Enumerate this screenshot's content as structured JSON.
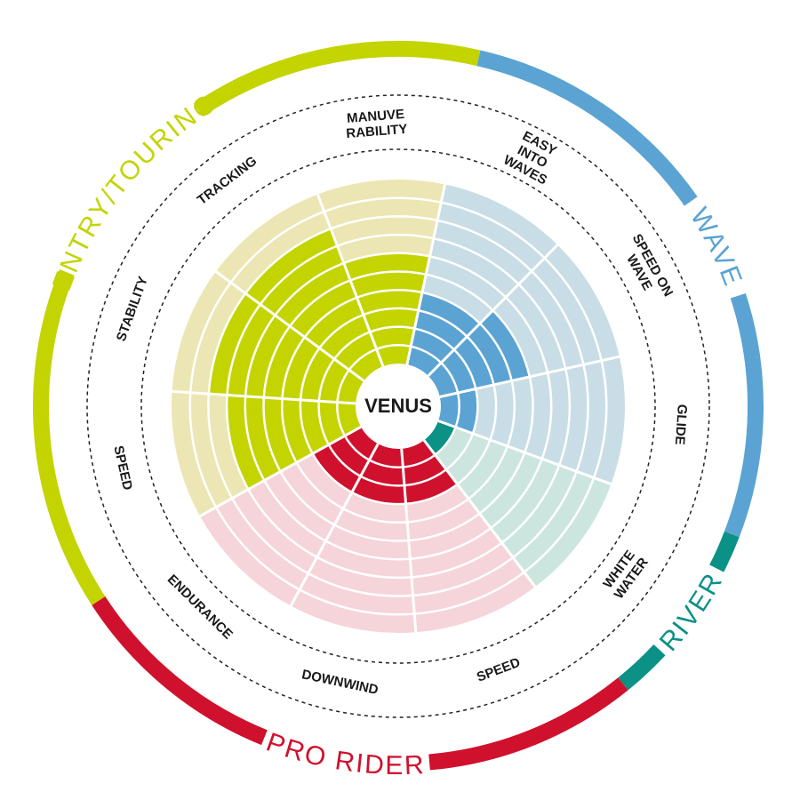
{
  "chart_data": {
    "type": "radial-rating",
    "title": "VENUS",
    "rlim": [
      0,
      10
    ],
    "groups": [
      {
        "name": "ENTRY/TOURING",
        "color": "#c3d400",
        "light_color": "#ece6b4",
        "categories": [
          {
            "label": [
              "SPEED"
            ],
            "value": 7
          },
          {
            "label": [
              "STABILITY"
            ],
            "value": 8
          },
          {
            "label": [
              "TRACKING"
            ],
            "value": 8
          },
          {
            "label": [
              "MANUVE",
              "RABILITY"
            ],
            "value": 6
          }
        ]
      },
      {
        "name": "WAVE",
        "color": "#5aa3d3",
        "light_color": "#c9dde6",
        "categories": [
          {
            "label": [
              "EASY",
              "INTO",
              "WAVES"
            ],
            "value": 4
          },
          {
            "label": [
              "SPEED ON",
              "WAVE"
            ],
            "value": 5
          },
          {
            "label": [
              "GLIDE"
            ],
            "value": 2
          }
        ]
      },
      {
        "name": "RIVER",
        "color": "#0b9186",
        "light_color": "#cce6df",
        "categories": [
          {
            "label": [
              "WHITE",
              "WATER"
            ],
            "value": 1
          }
        ]
      },
      {
        "name": "PRO RIDER",
        "color": "#d0112e",
        "light_color": "#f6d5da",
        "categories": [
          {
            "label": [
              "SPEED"
            ],
            "value": 3
          },
          {
            "label": [
              "DOWNWIND"
            ],
            "value": 3
          },
          {
            "label": [
              "ENDURANCE"
            ],
            "value": 3
          }
        ]
      }
    ]
  }
}
